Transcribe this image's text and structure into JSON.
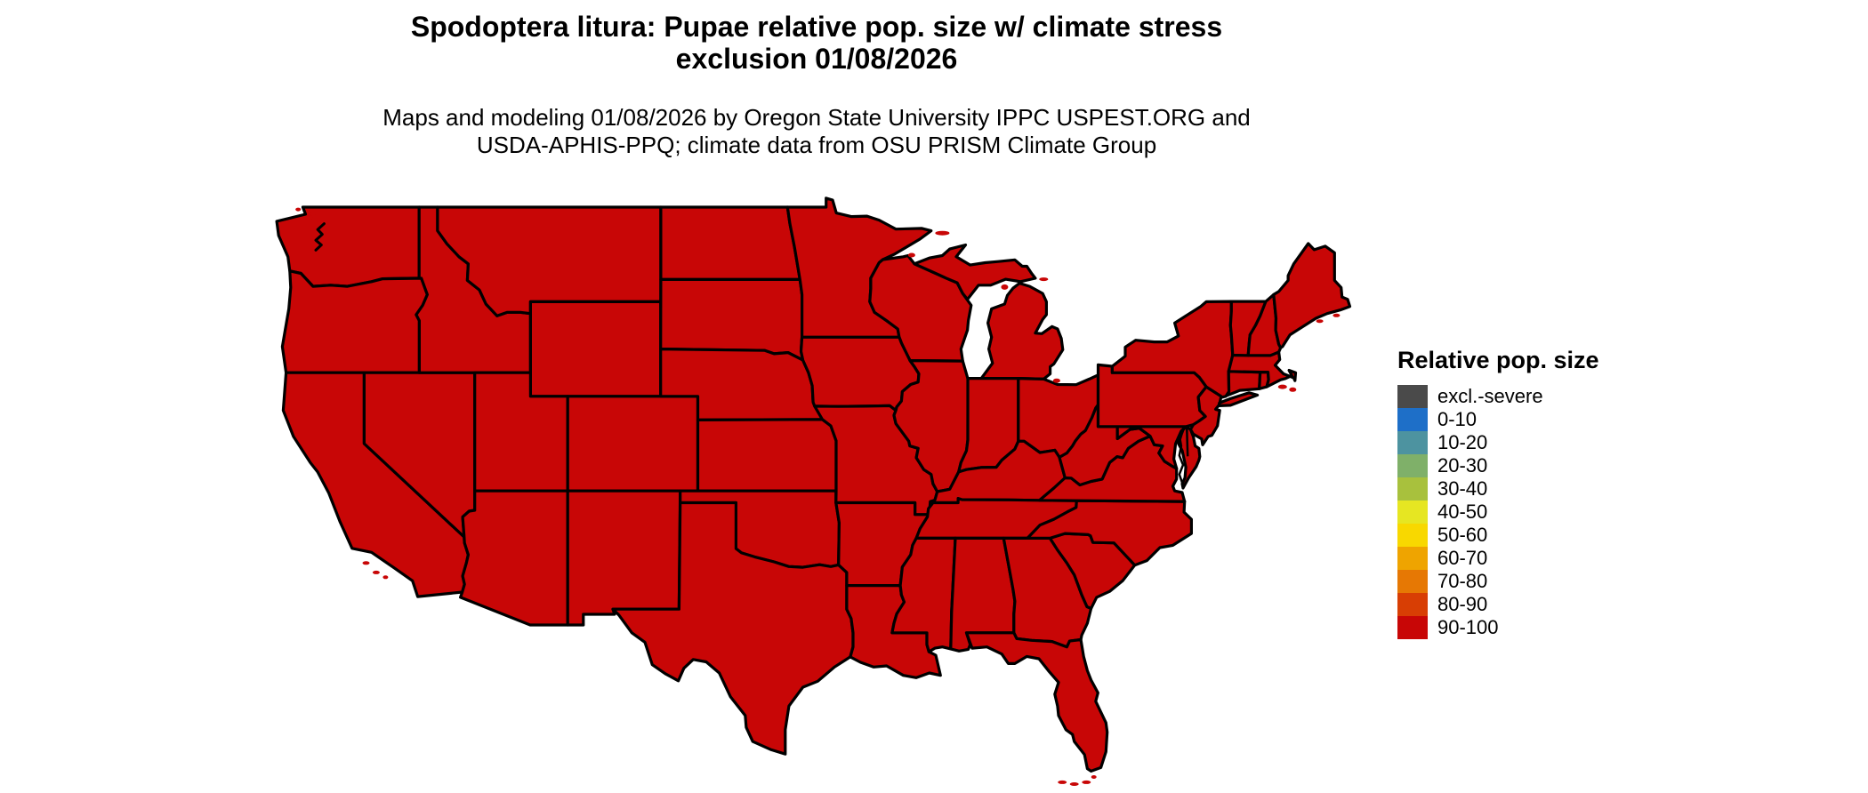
{
  "header": {
    "title_line1": "Spodoptera litura: Pupae relative pop. size w/ climate stress",
    "title_line2": "exclusion 01/08/2026",
    "subtitle_line1": "Maps and modeling 01/08/2026 by Oregon State University IPPC USPEST.ORG and",
    "subtitle_line2": "USDA-APHIS-PPQ; climate data from OSU PRISM Climate Group"
  },
  "legend": {
    "title": "Relative pop. size",
    "entries": [
      {
        "label": "excl.-severe",
        "color": "#4a4a4a"
      },
      {
        "label": "0-10",
        "color": "#1e6fc8"
      },
      {
        "label": "10-20",
        "color": "#4d93a0"
      },
      {
        "label": "20-30",
        "color": "#7fb069"
      },
      {
        "label": "30-40",
        "color": "#a8c13d"
      },
      {
        "label": "40-50",
        "color": "#e6e622"
      },
      {
        "label": "50-60",
        "color": "#f8d800"
      },
      {
        "label": "60-70",
        "color": "#efa400"
      },
      {
        "label": "70-80",
        "color": "#e67804"
      },
      {
        "label": "80-90",
        "color": "#d83e04"
      },
      {
        "label": "90-100",
        "color": "#c80606"
      }
    ]
  },
  "map": {
    "fill_color": "#c80606",
    "border_color": "#000000",
    "water_color": "#ffffff",
    "all_states_category": "90-100"
  },
  "chart_data": {
    "type": "choropleth_map",
    "region": "contiguous United States",
    "title": "Spodoptera litura: Pupae relative pop. size w/ climate stress exclusion 01/08/2026",
    "legend_title": "Relative pop. size",
    "legend_bins": [
      "excl.-severe",
      "0-10",
      "10-20",
      "20-30",
      "30-40",
      "40-50",
      "50-60",
      "60-70",
      "70-80",
      "80-90",
      "90-100"
    ],
    "legend_colors": [
      "#4a4a4a",
      "#1e6fc8",
      "#4d93a0",
      "#7fb069",
      "#a8c13d",
      "#e6e622",
      "#f8d800",
      "#efa400",
      "#e67804",
      "#d83e04",
      "#c80606"
    ],
    "value_for_entire_mapped_area": "90-100"
  }
}
